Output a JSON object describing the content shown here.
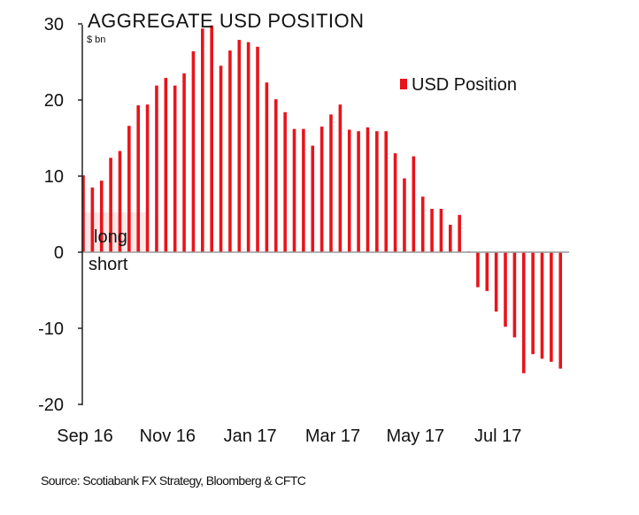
{
  "chart_data": {
    "type": "bar",
    "title": "AGGREGATE USD POSITION",
    "ylabel": "$ bn",
    "xlabel": "",
    "ylim": [
      -20,
      30
    ],
    "yticks": [
      -20,
      -10,
      0,
      10,
      20,
      30
    ],
    "ytick_labels": [
      "-20",
      "-10",
      "0",
      "10",
      "20",
      "30"
    ],
    "xtick_labels": [
      {
        "label": "Sep 16",
        "index": 0
      },
      {
        "label": "Nov 16",
        "index": 9
      },
      {
        "label": "Jan 17",
        "index": 18
      },
      {
        "label": "Mar 17",
        "index": 27
      },
      {
        "label": "May 17",
        "index": 36
      },
      {
        "label": "Jul 17",
        "index": 45
      }
    ],
    "legend": {
      "position": "top-right",
      "entries": [
        "USD Position"
      ]
    },
    "annotations": {
      "long": "long",
      "short": "short"
    },
    "series": [
      {
        "name": "USD Position",
        "color": "#e8141b",
        "values": [
          10.1,
          8.5,
          9.4,
          12.4,
          13.3,
          16.6,
          19.3,
          19.4,
          21.9,
          22.9,
          21.9,
          23.5,
          26.4,
          29.4,
          29.8,
          24.5,
          26.5,
          27.9,
          27.6,
          27.0,
          22.3,
          20.1,
          18.4,
          16.2,
          16.2,
          14.0,
          16.5,
          18.1,
          19.4,
          16.1,
          15.9,
          16.4,
          15.9,
          15.9,
          13.0,
          9.7,
          12.6,
          7.3,
          5.7,
          5.7,
          3.6,
          4.9,
          0.1,
          -4.6,
          -5.1,
          -7.8,
          -9.8,
          -11.2,
          -15.9,
          -13.4,
          -14.0,
          -14.4,
          -15.3
        ]
      }
    ],
    "source": "Source: Scotiabank FX Strategy, Bloomberg & CFTC"
  }
}
